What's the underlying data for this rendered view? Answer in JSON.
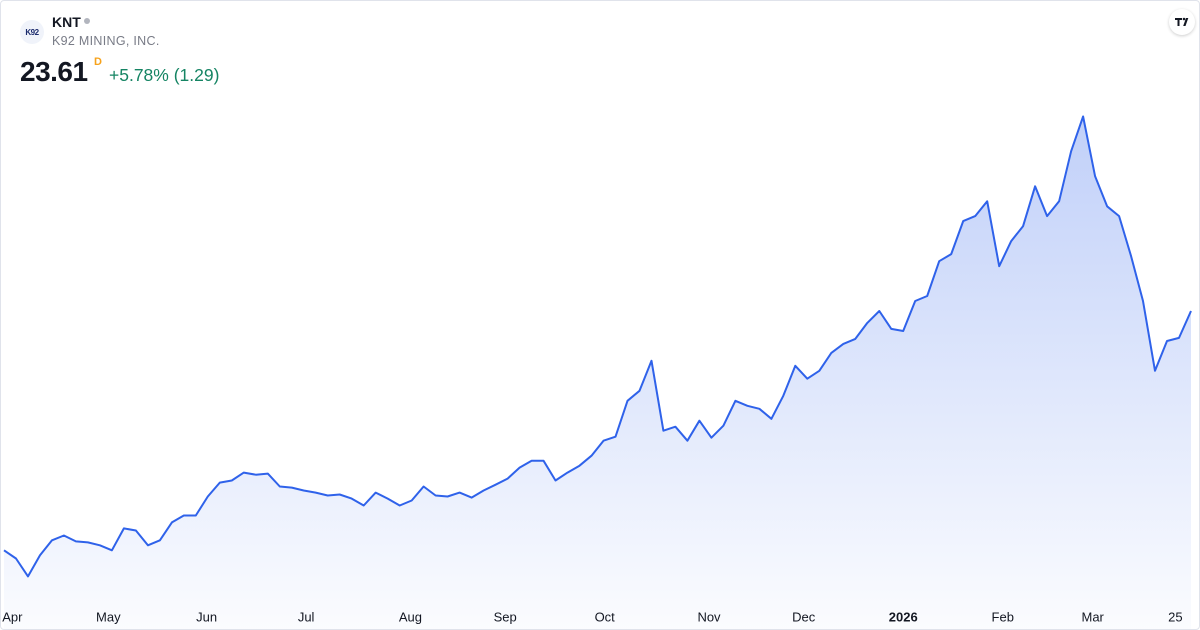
{
  "header": {
    "logo": "K92",
    "symbol": "KNT",
    "name": "K92 MINING, INC.",
    "price": "23.61",
    "interval": "D",
    "change": "+5.78% (1.29)"
  },
  "chart_data": {
    "type": "line",
    "color": "#2f62ea",
    "values": [
      12.13,
      11.74,
      10.88,
      11.89,
      12.61,
      12.84,
      12.56,
      12.51,
      12.37,
      12.13,
      13.18,
      13.08,
      12.37,
      12.61,
      13.47,
      13.8,
      13.8,
      14.71,
      15.38,
      15.48,
      15.86,
      15.76,
      15.81,
      15.19,
      15.14,
      15.0,
      14.9,
      14.76,
      14.81,
      14.61,
      14.28,
      14.9,
      14.61,
      14.28,
      14.52,
      15.19,
      14.76,
      14.71,
      14.9,
      14.66,
      15.0,
      15.28,
      15.57,
      16.1,
      16.43,
      16.43,
      15.48,
      15.86,
      16.19,
      16.67,
      17.39,
      17.58,
      19.3,
      19.78,
      21.22,
      17.87,
      18.06,
      17.39,
      18.35,
      17.53,
      18.11,
      19.3,
      19.06,
      18.92,
      18.44,
      19.54,
      20.98,
      20.36,
      20.74,
      21.6,
      22.03,
      22.27,
      23.04,
      23.61,
      22.75,
      22.65,
      24.09,
      24.33,
      26.0,
      26.34,
      27.92,
      28.16,
      28.87,
      25.76,
      26.96,
      27.68,
      29.59,
      28.16,
      28.87,
      31.27,
      32.94,
      30.07,
      28.63,
      28.16,
      26.24,
      24.09,
      20.74,
      22.17,
      22.32,
      23.61
    ],
    "xlim": [
      0,
      99
    ],
    "xticks": [
      {
        "value": 0.7,
        "label": "Apr"
      },
      {
        "value": 8.7,
        "label": "May"
      },
      {
        "value": 16.9,
        "label": "Jun"
      },
      {
        "value": 25.2,
        "label": "Jul"
      },
      {
        "value": 33.9,
        "label": "Aug"
      },
      {
        "value": 41.8,
        "label": "Sep"
      },
      {
        "value": 50.1,
        "label": "Oct"
      },
      {
        "value": 58.8,
        "label": "Nov"
      },
      {
        "value": 66.7,
        "label": "Dec"
      },
      {
        "value": 75,
        "label": "2026"
      },
      {
        "value": 83.3,
        "label": "Feb"
      },
      {
        "value": 90.8,
        "label": "Mar"
      },
      {
        "value": 97.7,
        "label": "25"
      }
    ],
    "ylim": [
      9.7,
      35.6
    ]
  }
}
